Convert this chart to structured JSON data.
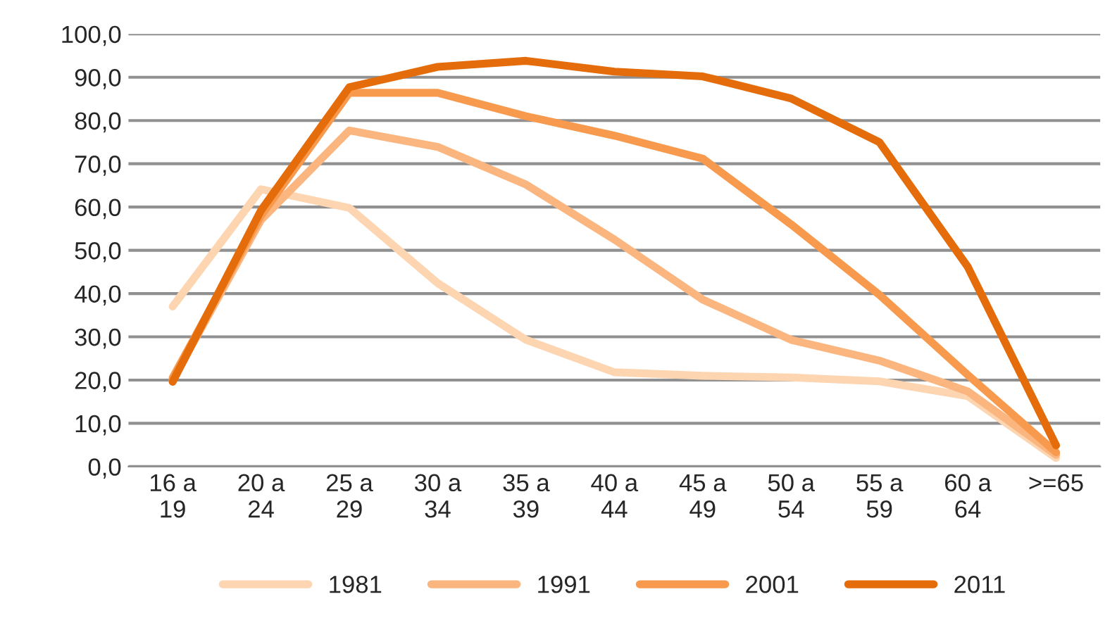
{
  "chart_data": {
    "type": "line",
    "categories": [
      "16 a\n19",
      "20 a\n24",
      "25 a\n29",
      "30 a\n34",
      "35 a\n39",
      "40 a\n44",
      "45 a\n49",
      "50 a\n54",
      "55 a\n59",
      "60 a\n64",
      ">=65"
    ],
    "series": [
      {
        "name": "1981",
        "color": "#fdd5b1",
        "values": [
          37.0,
          64.1,
          59.8,
          42.4,
          29.3,
          21.8,
          21.0,
          20.6,
          19.7,
          16.3,
          2.0
        ]
      },
      {
        "name": "1991",
        "color": "#fbb57f",
        "values": [
          20.0,
          57.0,
          77.7,
          73.9,
          65.2,
          52.5,
          38.6,
          29.3,
          24.5,
          17.4,
          2.7
        ]
      },
      {
        "name": "2001",
        "color": "#f89a4e",
        "values": [
          20.5,
          58.0,
          86.4,
          86.4,
          81.0,
          76.5,
          71.2,
          56.0,
          39.7,
          21.2,
          3.3
        ]
      },
      {
        "name": "2011",
        "color": "#e46c0a",
        "values": [
          19.6,
          59.2,
          87.7,
          92.4,
          93.8,
          91.3,
          90.2,
          85.1,
          75.0,
          46.2,
          4.9
        ]
      }
    ],
    "ylim": [
      0,
      100
    ],
    "yticks": [
      {
        "value": 0,
        "label": "0,0"
      },
      {
        "value": 10,
        "label": "10,0"
      },
      {
        "value": 20,
        "label": "20,0"
      },
      {
        "value": 30,
        "label": "30,0"
      },
      {
        "value": 40,
        "label": "40,0"
      },
      {
        "value": 50,
        "label": "50,0"
      },
      {
        "value": 60,
        "label": "60,0"
      },
      {
        "value": 70,
        "label": "70,0"
      },
      {
        "value": 80,
        "label": "80,0"
      },
      {
        "value": 90,
        "label": "90,0"
      },
      {
        "value": 100,
        "label": "100,0"
      }
    ],
    "grid": "y",
    "legend": "bottom",
    "marker": "none",
    "line_style": "solid"
  }
}
